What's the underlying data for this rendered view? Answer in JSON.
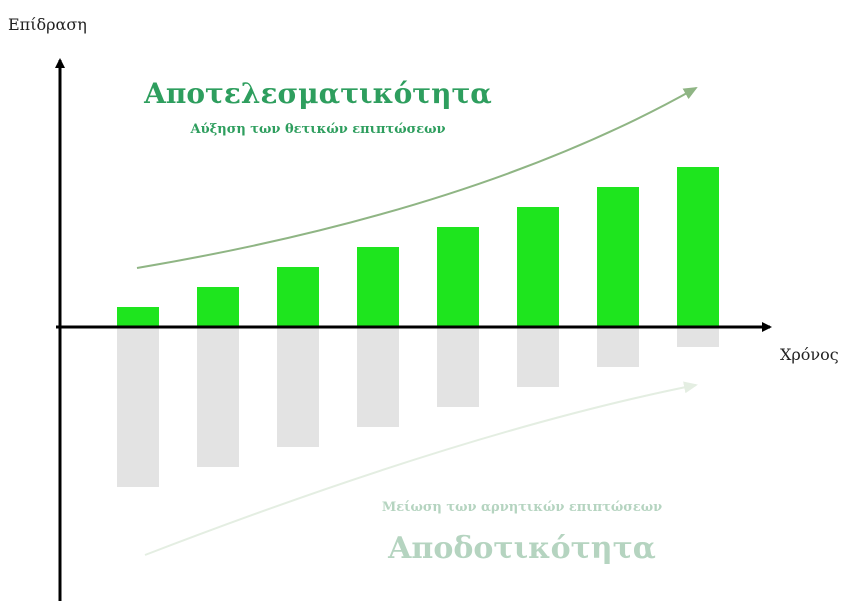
{
  "chart_data": {
    "type": "bar",
    "ylabel": "Επίδραση",
    "xlabel": "Χρόνος",
    "categories": [
      "",
      "",
      "",
      "",
      "",
      "",
      "",
      ""
    ],
    "series": [
      {
        "values": [
          1,
          2,
          3,
          4,
          5,
          6,
          7,
          8
        ]
      },
      {
        "values": [
          -8,
          -7,
          -6,
          -5,
          -4,
          -3,
          -2,
          -1
        ]
      }
    ],
    "ylim": [
      -13.5,
      13.5
    ],
    "grid": false,
    "legend": "none",
    "colors": {
      "positive": "#1ee51e",
      "negative": "#e3e3e3",
      "axis": "#000000",
      "positive_text": "#2e9e5e",
      "positive_arrow": "#8fb584",
      "negative_text": "#b5d4c0",
      "negative_arrow": "#e4eee2"
    },
    "annotations": {
      "positive_title": "Αποτελεσματικότητα",
      "positive_subtitle": "Αύξηση των θετικών επιπτώσεων",
      "negative_subtitle": "Μείωση των αρνητικών επιπτώσεων",
      "negative_title": "Αποδοτικότητα"
    }
  }
}
